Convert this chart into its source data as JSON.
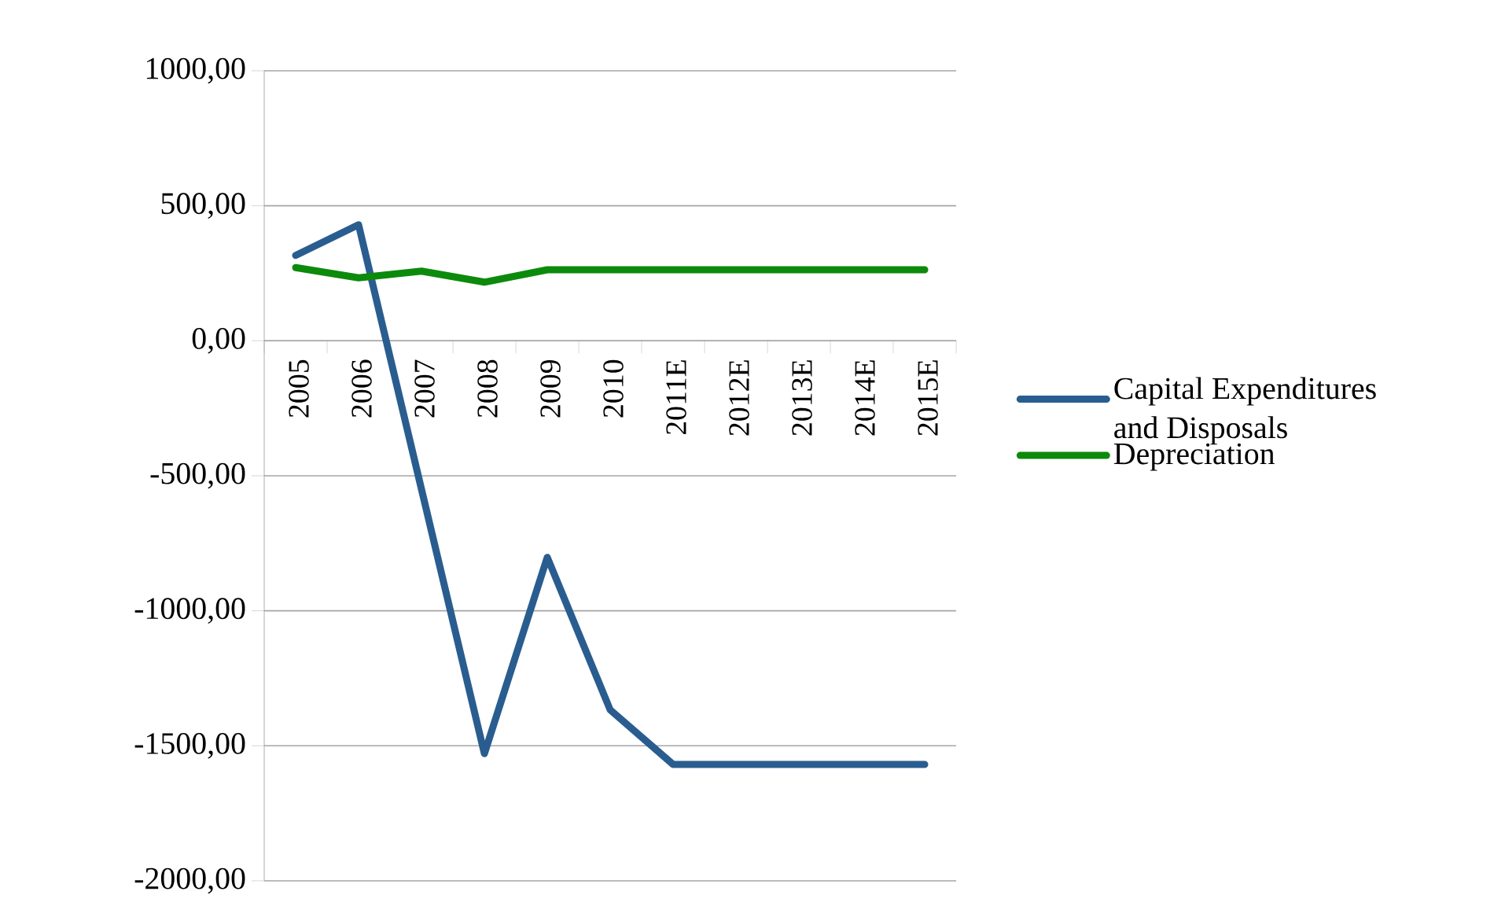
{
  "chart_data": {
    "type": "line",
    "categories": [
      "2005",
      "2006",
      "2007",
      "2008",
      "2009",
      "2010",
      "2011E",
      "2012E",
      "2013E",
      "2014E",
      "2015E"
    ],
    "series": [
      {
        "name": "Capital Expenditures and Disposals",
        "color": "#2a5d8f",
        "values": [
          316,
          430,
          -550,
          -1529,
          -802,
          -1367,
          -1569,
          -1569,
          -1569,
          -1569,
          -1569
        ]
      },
      {
        "name": "Depreciation",
        "color": "#0c8a0c",
        "values": [
          271,
          233,
          258,
          217,
          263,
          263,
          263,
          263,
          263,
          263,
          263
        ]
      }
    ],
    "ylim": [
      -2000,
      1000
    ],
    "yticks": [
      {
        "value": -2000,
        "label": "-2000,00"
      },
      {
        "value": -1500,
        "label": "-1500,00"
      },
      {
        "value": -1000,
        "label": "-1000,00"
      },
      {
        "value": -500,
        "label": "-500,00"
      },
      {
        "value": 0,
        "label": "0,00"
      },
      {
        "value": 500,
        "label": "500,00"
      },
      {
        "value": 1000,
        "label": "1000,00"
      }
    ],
    "grid": "y",
    "legend": "right",
    "marker": "none",
    "line_style": "solid"
  }
}
